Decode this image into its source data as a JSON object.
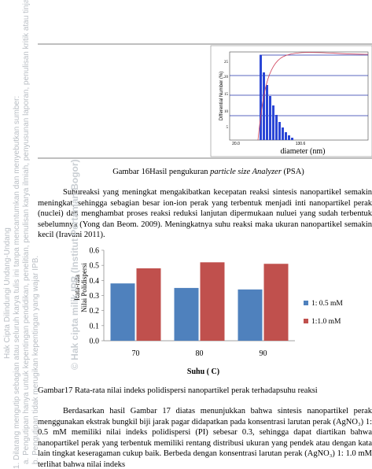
{
  "watermark": {
    "title": "Hak Cipta Dilindungi Undang-Undang",
    "line1": "1. Dilarang mengutip sebagian atau seluruh karya tulis ini tanpa mencantumkan dan menyebutkan sumber:",
    "line2": "a. Pengutipan hanya untuk kepentingan pendidikan, penelitian, penulisan karya ilmiah, penyusunan laporan, penulisan kritik atau tinjauan suatu masalah",
    "line3": "b. Pengutipan tidak merugikan kepentingan yang wajar IPB.",
    "owner": "© Hak cipta milik IPB (Institut Pertanian Bogor)"
  },
  "psa": {
    "ylabel": "Differential Number (%)",
    "yticks": [
      "25",
      "20",
      "15",
      "10",
      "5"
    ],
    "xticks": [
      "20.0",
      "130.6"
    ],
    "xlabel": "diameter (nm)"
  },
  "figure16_caption": [
    "Gambar 16Hasil pengukuran ",
    "particle size Analyzer",
    " (PSA)"
  ],
  "paragraph1": "Suhureaksi yang meningkat mengakibatkan kecepatan reaksi sintesis nanopartikel semakin meningkat, sehingga sebagian besar ion-ion perak yang terbentuk menjadi inti nanopartikel perak (nuclei) dan menghambat proses reaksi reduksi lanjutan dipermukaan nuluei yang sudah terbentuk sebelumnya (Yong dan Beom. 2009). Meningkatnya suhu reaksi maka ukuran nanopartikel semakin kecil (Iravani 2011).",
  "chart_data": {
    "type": "bar",
    "categories": [
      "70",
      "80",
      "90"
    ],
    "series": [
      {
        "name": "1: 0.5 mM",
        "color": "#4f81bd",
        "values": [
          0.38,
          0.35,
          0.34
        ]
      },
      {
        "name": "1:1.0 mM",
        "color": "#c0504d",
        "values": [
          0.48,
          0.52,
          0.51
        ]
      }
    ],
    "ylim": [
      0,
      0.6
    ],
    "yticks": [
      {
        "value": 0,
        "label": "0.0"
      },
      0.1,
      0.2,
      0.3,
      0.4,
      0.5,
      0.6
    ],
    "ytitle": [
      "Rata-rata",
      "Nilai Polidispersi"
    ],
    "xtitle": "Suhu (  C)",
    "legend": "right",
    "grid": false
  },
  "figure17_caption": "Gambar17  Rata-rata nilai indeks polidispersi nanopartikel perak terhadapsuhu reaksi",
  "paragraph2": "Berdasarkan hasil Gambar 17 diatas menunjukkan bahwa sintesis nanopartikel perak menggunakan ekstrak bungkil biji jarak pagar didapatkan pada konsentrasi larutan perak (AgNO₃) 1: 0.5 mM memiliki nilai indeks polidispersi (PI) sebesar 0.3, sehingga dapat diartikan bahwa nanopartikel perak yang terbentuk memiliki rentang distribusi ukuran yang pendek atau dengan kata lain tingkat keseragaman cukup baik. Berbeda dengan konsentrasi larutan perak (AgNO₃) 1: 1.0 mM terlihat bahwa nilai indeks"
}
